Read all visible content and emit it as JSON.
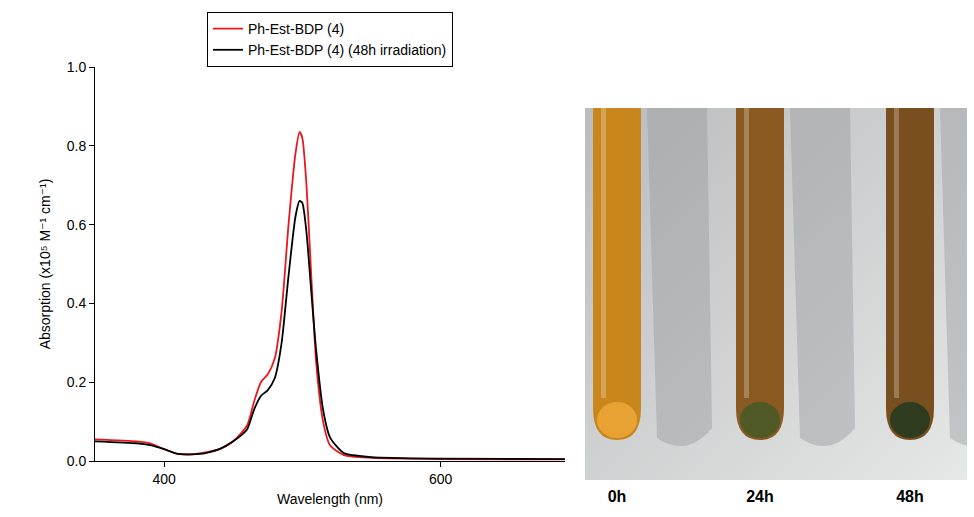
{
  "chart_data": {
    "type": "line",
    "x_label": "Wavelength (nm)",
    "y_label": "Absorption (x10⁵ M⁻¹ cm⁻¹)",
    "xlim": [
      350,
      690
    ],
    "xticks": [
      400,
      600
    ],
    "ylim": [
      0,
      1.0
    ],
    "yticks": [
      {
        "value": 0,
        "label": "0.0"
      },
      0.2,
      0.4,
      0.6,
      0.8,
      {
        "value": 1.0,
        "label": "1.0"
      }
    ],
    "grid": false,
    "legend": "top",
    "series": [
      {
        "name": "Ph-Est-BDP (4)",
        "color": "#e8191e",
        "x": [
          350,
          380,
          390,
          400,
          410,
          420,
          430,
          440,
          450,
          460,
          465,
          470,
          475,
          480,
          485,
          490,
          495,
          498,
          500,
          503,
          506,
          510,
          515,
          520,
          530,
          550,
          600,
          690
        ],
        "values": [
          0.055,
          0.05,
          0.045,
          0.03,
          0.018,
          0.017,
          0.022,
          0.03,
          0.05,
          0.09,
          0.15,
          0.2,
          0.22,
          0.26,
          0.38,
          0.6,
          0.78,
          0.835,
          0.82,
          0.7,
          0.5,
          0.25,
          0.1,
          0.04,
          0.015,
          0.008,
          0.005,
          0.004
        ]
      },
      {
        "name": "Ph-Est-BDP (4) (48h irradiation)",
        "color": "#000000",
        "x": [
          350,
          380,
          390,
          400,
          410,
          420,
          430,
          440,
          450,
          460,
          465,
          470,
          475,
          480,
          485,
          490,
          495,
          498,
          500,
          503,
          506,
          510,
          515,
          520,
          530,
          550,
          600,
          690
        ],
        "values": [
          0.05,
          0.045,
          0.04,
          0.03,
          0.018,
          0.017,
          0.02,
          0.03,
          0.05,
          0.08,
          0.13,
          0.165,
          0.18,
          0.21,
          0.3,
          0.47,
          0.62,
          0.66,
          0.655,
          0.58,
          0.45,
          0.28,
          0.13,
          0.06,
          0.02,
          0.01,
          0.006,
          0.005
        ]
      }
    ]
  },
  "inset": {
    "labels": [
      "0h",
      "24h",
      "48h"
    ]
  }
}
